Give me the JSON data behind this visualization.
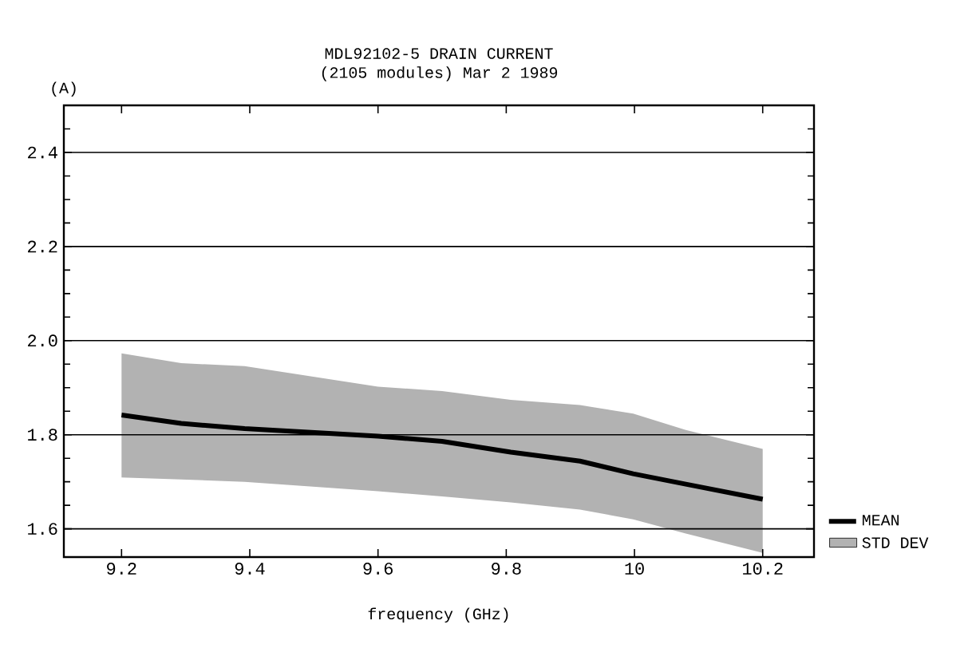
{
  "chart_data": {
    "type": "line",
    "title": "MDL92102-5  DRAIN CURRENT",
    "subtitle": "(2105 modules) Mar 2 1989",
    "xlabel": "frequency (GHz)",
    "ylabel": "(A)",
    "xlim": [
      9.11,
      10.28
    ],
    "ylim": [
      1.54,
      2.5
    ],
    "xticks": [
      9.2,
      9.4,
      9.6,
      9.8,
      {
        "value": 10,
        "label": "10"
      },
      10.2
    ],
    "yticks": [
      1.6,
      {
        "value": 1.65,
        "label": null
      },
      {
        "value": 1.7,
        "label": null
      },
      {
        "value": 1.75,
        "label": null
      },
      1.8,
      {
        "value": 1.85,
        "label": null
      },
      {
        "value": 1.9,
        "label": null
      },
      {
        "value": 1.95,
        "label": null
      },
      {
        "value": 2,
        "label": "2.0"
      },
      {
        "value": 2.05,
        "label": null
      },
      {
        "value": 2.1,
        "label": null
      },
      {
        "value": 2.15,
        "label": null
      },
      2.2,
      {
        "value": 2.25,
        "label": null
      },
      {
        "value": 2.3,
        "label": null
      },
      {
        "value": 2.35,
        "label": null
      },
      2.4,
      {
        "value": 2.45,
        "label": null
      }
    ],
    "annotations": [
      "STD DEV"
    ],
    "grid": "y",
    "legend": "bottom right",
    "marker": "none",
    "x": [
      9.2,
      9.293,
      9.392,
      9.6,
      9.7,
      9.807,
      9.915,
      9.998,
      10.08,
      10.2
    ],
    "series": [
      {
        "name": "MEAN",
        "color": "#000000",
        "values": [
          1.842,
          1.824,
          1.813,
          1.797,
          1.786,
          1.763,
          1.744,
          1.717,
          1.695,
          1.663
        ],
        "lower": [
          1.709,
          1.705,
          1.7,
          1.68,
          1.669,
          1.656,
          1.641,
          1.62,
          1.59,
          1.549
        ],
        "upper": [
          1.973,
          1.952,
          1.946,
          1.902,
          1.893,
          1.874,
          1.863,
          1.845,
          1.81,
          1.77
        ]
      }
    ]
  }
}
